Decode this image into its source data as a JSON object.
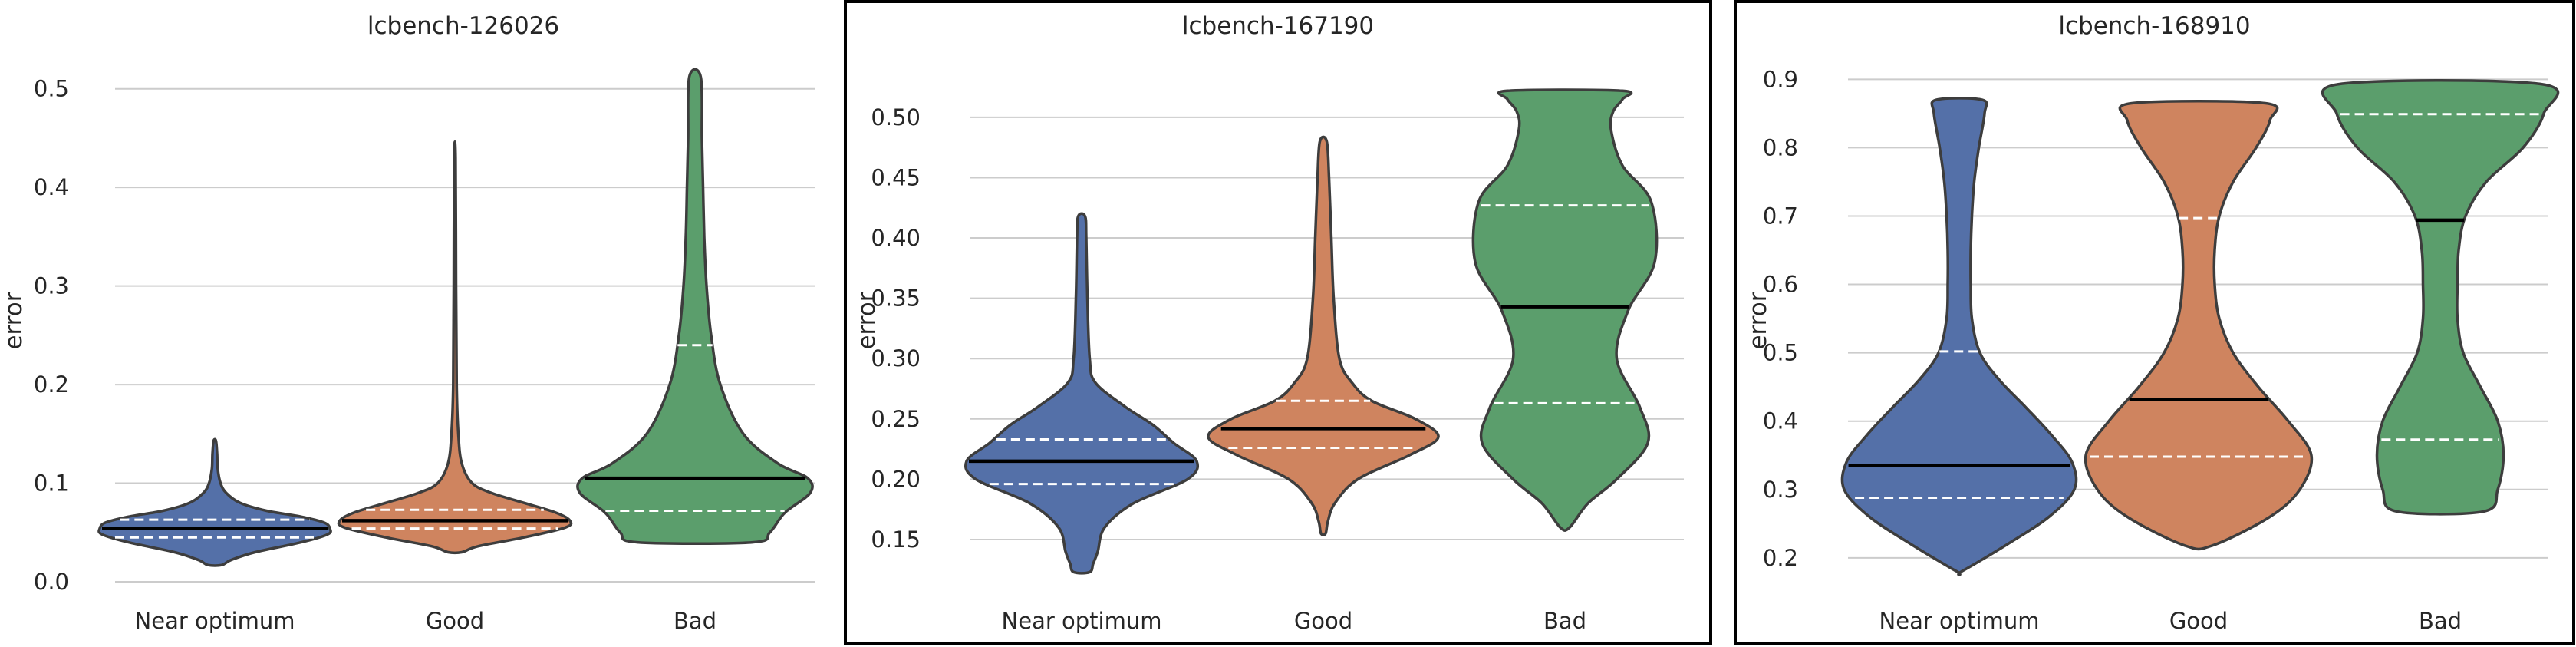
{
  "chart_data": [
    {
      "type": "violin",
      "title": "lcbench-126026",
      "ylabel": "error",
      "xlabel": "",
      "ylim": [
        0,
        0.52
      ],
      "yticks": [
        "0.0",
        "0.1",
        "0.2",
        "0.3",
        "0.4",
        "0.5"
      ],
      "grid": true,
      "framed": false,
      "categories": [
        "Near optimum",
        "Good",
        "Bad"
      ],
      "colors": [
        "#5470a8",
        "#cf845f",
        "#5b9e6c"
      ],
      "series": [
        {
          "min": 0.017,
          "max": 0.143,
          "median": 0.054,
          "q1": 0.045,
          "q3": 0.063,
          "profile": [
            [
              0.017,
              0.06
            ],
            [
              0.022,
              0.14
            ],
            [
              0.03,
              0.35
            ],
            [
              0.04,
              0.75
            ],
            [
              0.048,
              0.98
            ],
            [
              0.054,
              1.0
            ],
            [
              0.06,
              0.95
            ],
            [
              0.066,
              0.75
            ],
            [
              0.072,
              0.45
            ],
            [
              0.08,
              0.22
            ],
            [
              0.09,
              0.1
            ],
            [
              0.1,
              0.05
            ],
            [
              0.115,
              0.025
            ],
            [
              0.13,
              0.02
            ],
            [
              0.143,
              0.01
            ]
          ]
        },
        {
          "min": 0.03,
          "max": 0.43,
          "median": 0.062,
          "q1": 0.054,
          "q3": 0.073,
          "profile": [
            [
              0.03,
              0.06
            ],
            [
              0.036,
              0.2
            ],
            [
              0.045,
              0.6
            ],
            [
              0.055,
              0.96
            ],
            [
              0.062,
              1.0
            ],
            [
              0.07,
              0.88
            ],
            [
              0.08,
              0.6
            ],
            [
              0.09,
              0.32
            ],
            [
              0.1,
              0.15
            ],
            [
              0.12,
              0.06
            ],
            [
              0.15,
              0.03
            ],
            [
              0.2,
              0.015
            ],
            [
              0.3,
              0.01
            ],
            [
              0.43,
              0.006
            ]
          ]
        },
        {
          "min": 0.04,
          "max": 0.512,
          "median": 0.105,
          "q1": 0.072,
          "q3": 0.24,
          "profile": [
            [
              0.04,
              0.5
            ],
            [
              0.05,
              0.65
            ],
            [
              0.07,
              0.78
            ],
            [
              0.09,
              1.0
            ],
            [
              0.105,
              0.98
            ],
            [
              0.12,
              0.72
            ],
            [
              0.15,
              0.42
            ],
            [
              0.2,
              0.22
            ],
            [
              0.25,
              0.14
            ],
            [
              0.3,
              0.1
            ],
            [
              0.35,
              0.08
            ],
            [
              0.4,
              0.07
            ],
            [
              0.45,
              0.06
            ],
            [
              0.512,
              0.05
            ]
          ]
        }
      ]
    },
    {
      "type": "violin",
      "title": "lcbench-167190",
      "ylabel": "error",
      "xlabel": "",
      "ylim": [
        0.115,
        0.54
      ],
      "yticks": [
        "0.15",
        "0.20",
        "0.25",
        "0.30",
        "0.35",
        "0.40",
        "0.45",
        "0.50"
      ],
      "grid": true,
      "framed": true,
      "categories": [
        "Near optimum",
        "Good",
        "Bad"
      ],
      "colors": [
        "#5470a8",
        "#cf845f",
        "#5b9e6c"
      ],
      "series": [
        {
          "min": 0.123,
          "max": 0.418,
          "median": 0.215,
          "q1": 0.196,
          "q3": 0.233,
          "profile": [
            [
              0.123,
              0.07
            ],
            [
              0.13,
              0.1
            ],
            [
              0.14,
              0.14
            ],
            [
              0.16,
              0.2
            ],
            [
              0.18,
              0.45
            ],
            [
              0.2,
              0.92
            ],
            [
              0.215,
              1.0
            ],
            [
              0.23,
              0.8
            ],
            [
              0.245,
              0.62
            ],
            [
              0.26,
              0.38
            ],
            [
              0.28,
              0.12
            ],
            [
              0.3,
              0.07
            ],
            [
              0.35,
              0.05
            ],
            [
              0.4,
              0.04
            ],
            [
              0.418,
              0.03
            ]
          ]
        },
        {
          "min": 0.155,
          "max": 0.48,
          "median": 0.242,
          "q1": 0.226,
          "q3": 0.265,
          "profile": [
            [
              0.155,
              0.02
            ],
            [
              0.165,
              0.04
            ],
            [
              0.18,
              0.1
            ],
            [
              0.2,
              0.3
            ],
            [
              0.22,
              0.75
            ],
            [
              0.235,
              1.0
            ],
            [
              0.25,
              0.8
            ],
            [
              0.265,
              0.42
            ],
            [
              0.28,
              0.25
            ],
            [
              0.3,
              0.14
            ],
            [
              0.35,
              0.09
            ],
            [
              0.4,
              0.07
            ],
            [
              0.45,
              0.05
            ],
            [
              0.48,
              0.03
            ]
          ]
        },
        {
          "min": 0.16,
          "max": 0.522,
          "median": 0.343,
          "q1": 0.263,
          "q3": 0.427,
          "profile": [
            [
              0.16,
              0.04
            ],
            [
              0.18,
              0.2
            ],
            [
              0.2,
              0.45
            ],
            [
              0.23,
              0.72
            ],
            [
              0.26,
              0.65
            ],
            [
              0.3,
              0.45
            ],
            [
              0.34,
              0.55
            ],
            [
              0.38,
              0.78
            ],
            [
              0.43,
              0.75
            ],
            [
              0.46,
              0.5
            ],
            [
              0.49,
              0.4
            ],
            [
              0.505,
              0.42
            ],
            [
              0.515,
              0.5
            ],
            [
              0.522,
              0.5
            ]
          ]
        }
      ]
    },
    {
      "type": "violin",
      "title": "lcbench-168910",
      "ylabel": "error",
      "xlabel": "",
      "ylim": [
        0.165,
        0.915
      ],
      "yticks": [
        "0.2",
        "0.3",
        "0.4",
        "0.5",
        "0.6",
        "0.7",
        "0.8",
        "0.9"
      ],
      "grid": true,
      "framed": true,
      "categories": [
        "Near optimum",
        "Good",
        "Bad"
      ],
      "colors": [
        "#5470a8",
        "#cf845f",
        "#5b9e6c"
      ],
      "series": [
        {
          "min": 0.18,
          "max": 0.87,
          "median": 0.335,
          "q1": 0.288,
          "q3": 0.502,
          "profile": [
            [
              0.18,
              0.02
            ],
            [
              0.22,
              0.42
            ],
            [
              0.26,
              0.78
            ],
            [
              0.3,
              1.0
            ],
            [
              0.34,
              0.98
            ],
            [
              0.38,
              0.8
            ],
            [
              0.42,
              0.58
            ],
            [
              0.46,
              0.35
            ],
            [
              0.5,
              0.18
            ],
            [
              0.55,
              0.11
            ],
            [
              0.6,
              0.1
            ],
            [
              0.65,
              0.1
            ],
            [
              0.7,
              0.11
            ],
            [
              0.75,
              0.13
            ],
            [
              0.8,
              0.17
            ],
            [
              0.85,
              0.22
            ],
            [
              0.87,
              0.2
            ]
          ]
        },
        {
          "min": 0.218,
          "max": 0.865,
          "median": 0.432,
          "q1": 0.348,
          "q3": 0.697,
          "profile": [
            [
              0.218,
              0.12
            ],
            [
              0.26,
              0.62
            ],
            [
              0.3,
              0.88
            ],
            [
              0.35,
              0.98
            ],
            [
              0.4,
              0.78
            ],
            [
              0.45,
              0.52
            ],
            [
              0.5,
              0.3
            ],
            [
              0.55,
              0.18
            ],
            [
              0.6,
              0.14
            ],
            [
              0.65,
              0.14
            ],
            [
              0.7,
              0.18
            ],
            [
              0.75,
              0.3
            ],
            [
              0.8,
              0.5
            ],
            [
              0.84,
              0.62
            ],
            [
              0.865,
              0.58
            ]
          ]
        },
        {
          "min": 0.268,
          "max": 0.893,
          "median": 0.694,
          "q1": 0.373,
          "q3": 0.849,
          "profile": [
            [
              0.268,
              0.38
            ],
            [
              0.3,
              0.5
            ],
            [
              0.35,
              0.55
            ],
            [
              0.4,
              0.5
            ],
            [
              0.45,
              0.35
            ],
            [
              0.5,
              0.2
            ],
            [
              0.55,
              0.15
            ],
            [
              0.6,
              0.15
            ],
            [
              0.65,
              0.16
            ],
            [
              0.7,
              0.22
            ],
            [
              0.75,
              0.4
            ],
            [
              0.8,
              0.72
            ],
            [
              0.85,
              0.9
            ],
            [
              0.893,
              0.88
            ]
          ]
        }
      ]
    }
  ]
}
